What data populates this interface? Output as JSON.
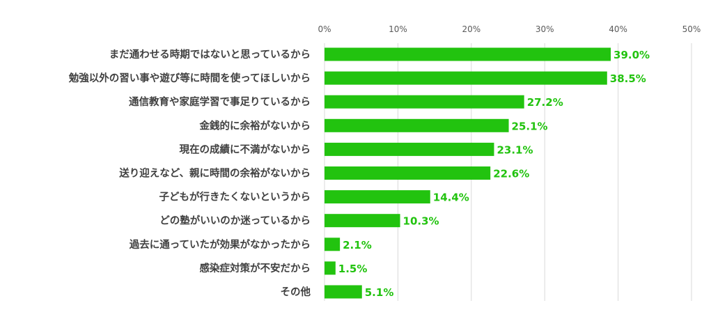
{
  "chart_data": {
    "type": "bar",
    "orientation": "horizontal",
    "title": "",
    "xlabel": "",
    "ylabel": "",
    "xlim": [
      0,
      50
    ],
    "x_ticks": [
      "0%",
      "10%",
      "20%",
      "30%",
      "40%",
      "50%"
    ],
    "grid": true,
    "bar_color": "#22c30f",
    "label_color": "#22c30f",
    "categories": [
      "まだ通わせる時期ではないと思っているから",
      "勉強以外の習い事や遊び等に時間を使ってほしいから",
      "通信教育や家庭学習で事足りているから",
      "金銭的に余裕がないから",
      "現在の成績に不満がないから",
      "送り迎えなど、親に時間の余裕がないから",
      "子どもが行きたくないというから",
      "どの塾がいいのか迷っているから",
      "過去に通っていたが効果がなかったから",
      "感染症対策が不安だから",
      "その他"
    ],
    "values": [
      39.0,
      38.5,
      27.2,
      25.1,
      23.1,
      22.6,
      14.4,
      10.3,
      2.1,
      1.5,
      5.1
    ],
    "value_labels": [
      "39.0%",
      "38.5%",
      "27.2%",
      "25.1%",
      "23.1%",
      "22.6%",
      "14.4%",
      "10.3%",
      "2.1%",
      "1.5%",
      "5.1%"
    ]
  }
}
